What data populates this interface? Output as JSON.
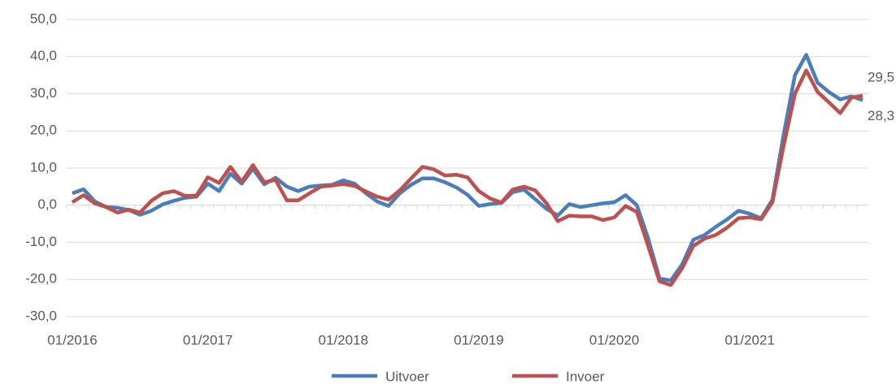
{
  "chart_data": {
    "type": "line",
    "categories": [
      "01/2016",
      null,
      null,
      null,
      null,
      null,
      null,
      null,
      null,
      null,
      null,
      null,
      "01/2017",
      null,
      null,
      null,
      null,
      null,
      null,
      null,
      null,
      null,
      null,
      null,
      "01/2018",
      null,
      null,
      null,
      null,
      null,
      null,
      null,
      null,
      null,
      null,
      null,
      "01/2019",
      null,
      null,
      null,
      null,
      null,
      null,
      null,
      null,
      null,
      null,
      null,
      "01/2020",
      null,
      null,
      null,
      null,
      null,
      null,
      null,
      null,
      null,
      null,
      null,
      "01/2021",
      null,
      null,
      null,
      null,
      null,
      null,
      null,
      null,
      null,
      null
    ],
    "series": [
      {
        "name": "Uitvoer",
        "color": "#4a7ebb",
        "value_label_color": "#2e6a9e",
        "values": [
          3.2,
          4.3,
          1.0,
          -0.5,
          -0.7,
          -1.3,
          -2.6,
          -1.5,
          0.2,
          1.2,
          2.0,
          2.3,
          5.8,
          3.8,
          8.5,
          5.8,
          9.8,
          5.6,
          7.4,
          5.0,
          3.8,
          5.0,
          5.3,
          5.5,
          6.7,
          5.8,
          3.2,
          1.0,
          -0.2,
          3.2,
          5.5,
          7.2,
          7.2,
          6.2,
          4.8,
          2.8,
          -0.2,
          0.3,
          0.6,
          3.5,
          4.2,
          1.6,
          -1.0,
          -2.8,
          0.3,
          -0.5,
          0.0,
          0.5,
          0.8,
          2.7,
          0.0,
          -9.0,
          -19.7,
          -20.3,
          -16.0,
          -9.3,
          -8.0,
          -5.8,
          -3.8,
          -1.5,
          -2.3,
          -3.5,
          1.5,
          19.0,
          35.0,
          40.5,
          33.0,
          30.5,
          28.5,
          29.3,
          28.3
        ],
        "value_labels": [
          null,
          null,
          null,
          null,
          null,
          null,
          null,
          null,
          null,
          null,
          null,
          null,
          null,
          null,
          null,
          null,
          null,
          null,
          null,
          null,
          null,
          null,
          null,
          null,
          null,
          null,
          null,
          null,
          null,
          null,
          null,
          null,
          null,
          null,
          null,
          null,
          null,
          null,
          null,
          null,
          null,
          null,
          null,
          null,
          null,
          null,
          null,
          null,
          null,
          null,
          null,
          null,
          null,
          null,
          null,
          null,
          null,
          null,
          null,
          null,
          null,
          null,
          null,
          null,
          null,
          null,
          null,
          null,
          null,
          null,
          "28,3"
        ]
      },
      {
        "name": "Invoer",
        "color": "#c0504d",
        "value_label_color": "#604a7b",
        "values": [
          0.8,
          2.7,
          0.5,
          -0.5,
          -2.0,
          -1.2,
          -2.0,
          1.2,
          3.2,
          3.8,
          2.5,
          2.6,
          7.5,
          6.0,
          10.3,
          6.3,
          10.8,
          6.2,
          6.8,
          1.3,
          1.3,
          3.2,
          5.0,
          5.3,
          5.7,
          5.2,
          3.7,
          2.3,
          1.5,
          4.0,
          7.2,
          10.3,
          9.7,
          8.0,
          8.2,
          7.5,
          3.8,
          1.8,
          0.7,
          4.2,
          5.0,
          4.0,
          0.5,
          -4.3,
          -2.8,
          -3.0,
          -3.0,
          -4.0,
          -3.3,
          -0.2,
          -1.8,
          -11.0,
          -20.5,
          -21.5,
          -17.0,
          -11.0,
          -9.0,
          -8.0,
          -6.0,
          -3.5,
          -3.3,
          -3.8,
          0.8,
          16.0,
          30.0,
          36.3,
          30.5,
          27.7,
          24.8,
          29.0,
          29.5
        ],
        "value_labels": [
          null,
          null,
          null,
          null,
          null,
          null,
          null,
          null,
          null,
          null,
          null,
          null,
          null,
          null,
          null,
          null,
          null,
          null,
          null,
          null,
          null,
          null,
          null,
          null,
          null,
          null,
          null,
          null,
          null,
          null,
          null,
          null,
          null,
          null,
          null,
          null,
          null,
          null,
          null,
          null,
          null,
          null,
          null,
          null,
          null,
          null,
          null,
          null,
          null,
          null,
          null,
          null,
          null,
          null,
          null,
          null,
          null,
          null,
          null,
          null,
          null,
          null,
          null,
          null,
          null,
          null,
          null,
          null,
          null,
          null,
          "29,5"
        ]
      }
    ],
    "ylim": [
      -30,
      50
    ],
    "yticks": [
      {
        "value": -30,
        "label": "-30,0"
      },
      {
        "value": -20,
        "label": "-20,0"
      },
      {
        "value": -10,
        "label": "-10,0"
      },
      {
        "value": 0,
        "label": "0,0"
      },
      {
        "value": 10,
        "label": "10,0"
      },
      {
        "value": 20,
        "label": "20,0"
      },
      {
        "value": 30,
        "label": "30,0"
      },
      {
        "value": 40,
        "label": "40,0"
      },
      {
        "value": 50,
        "label": "50,0"
      }
    ],
    "grid": true,
    "legend": "bottom"
  }
}
